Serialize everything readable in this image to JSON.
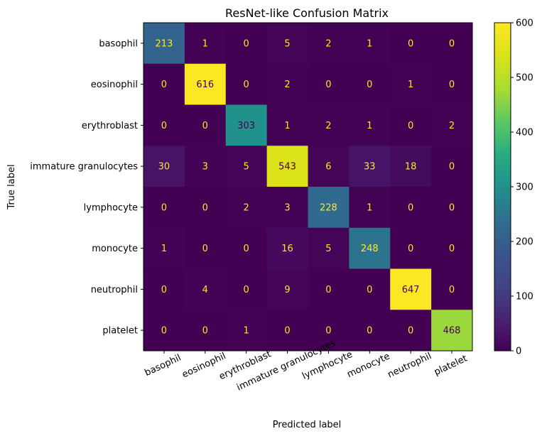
{
  "chart_data": {
    "type": "heatmap",
    "title": "ResNet-like Confusion Matrix",
    "xlabel": "Predicted label",
    "ylabel": "True label",
    "row_labels": [
      "basophil",
      "eosinophil",
      "erythroblast",
      "immature granulocytes",
      "lymphocyte",
      "monocyte",
      "neutrophil",
      "platelet"
    ],
    "col_labels": [
      "basophil",
      "eosinophil",
      "erythroblast",
      "immature granulocytes",
      "lymphocyte",
      "monocyte",
      "neutrophil",
      "platelet"
    ],
    "values": [
      [
        213,
        1,
        0,
        5,
        2,
        1,
        0,
        0
      ],
      [
        0,
        616,
        0,
        2,
        0,
        0,
        1,
        0
      ],
      [
        0,
        0,
        303,
        1,
        2,
        1,
        0,
        2
      ],
      [
        30,
        3,
        5,
        543,
        6,
        33,
        18,
        0
      ],
      [
        0,
        0,
        2,
        3,
        228,
        1,
        0,
        0
      ],
      [
        1,
        0,
        0,
        16,
        5,
        248,
        0,
        0
      ],
      [
        0,
        4,
        0,
        9,
        0,
        0,
        647,
        0
      ],
      [
        0,
        0,
        1,
        0,
        0,
        0,
        0,
        468
      ]
    ],
    "colormap": "viridis",
    "color_range": [
      0,
      600
    ],
    "colorbar_ticks": [
      0,
      100,
      200,
      300,
      400,
      500,
      600
    ],
    "text_color_light": "#fde725",
    "text_color_dark": "#440154",
    "xtick_rotation_deg": 25
  }
}
